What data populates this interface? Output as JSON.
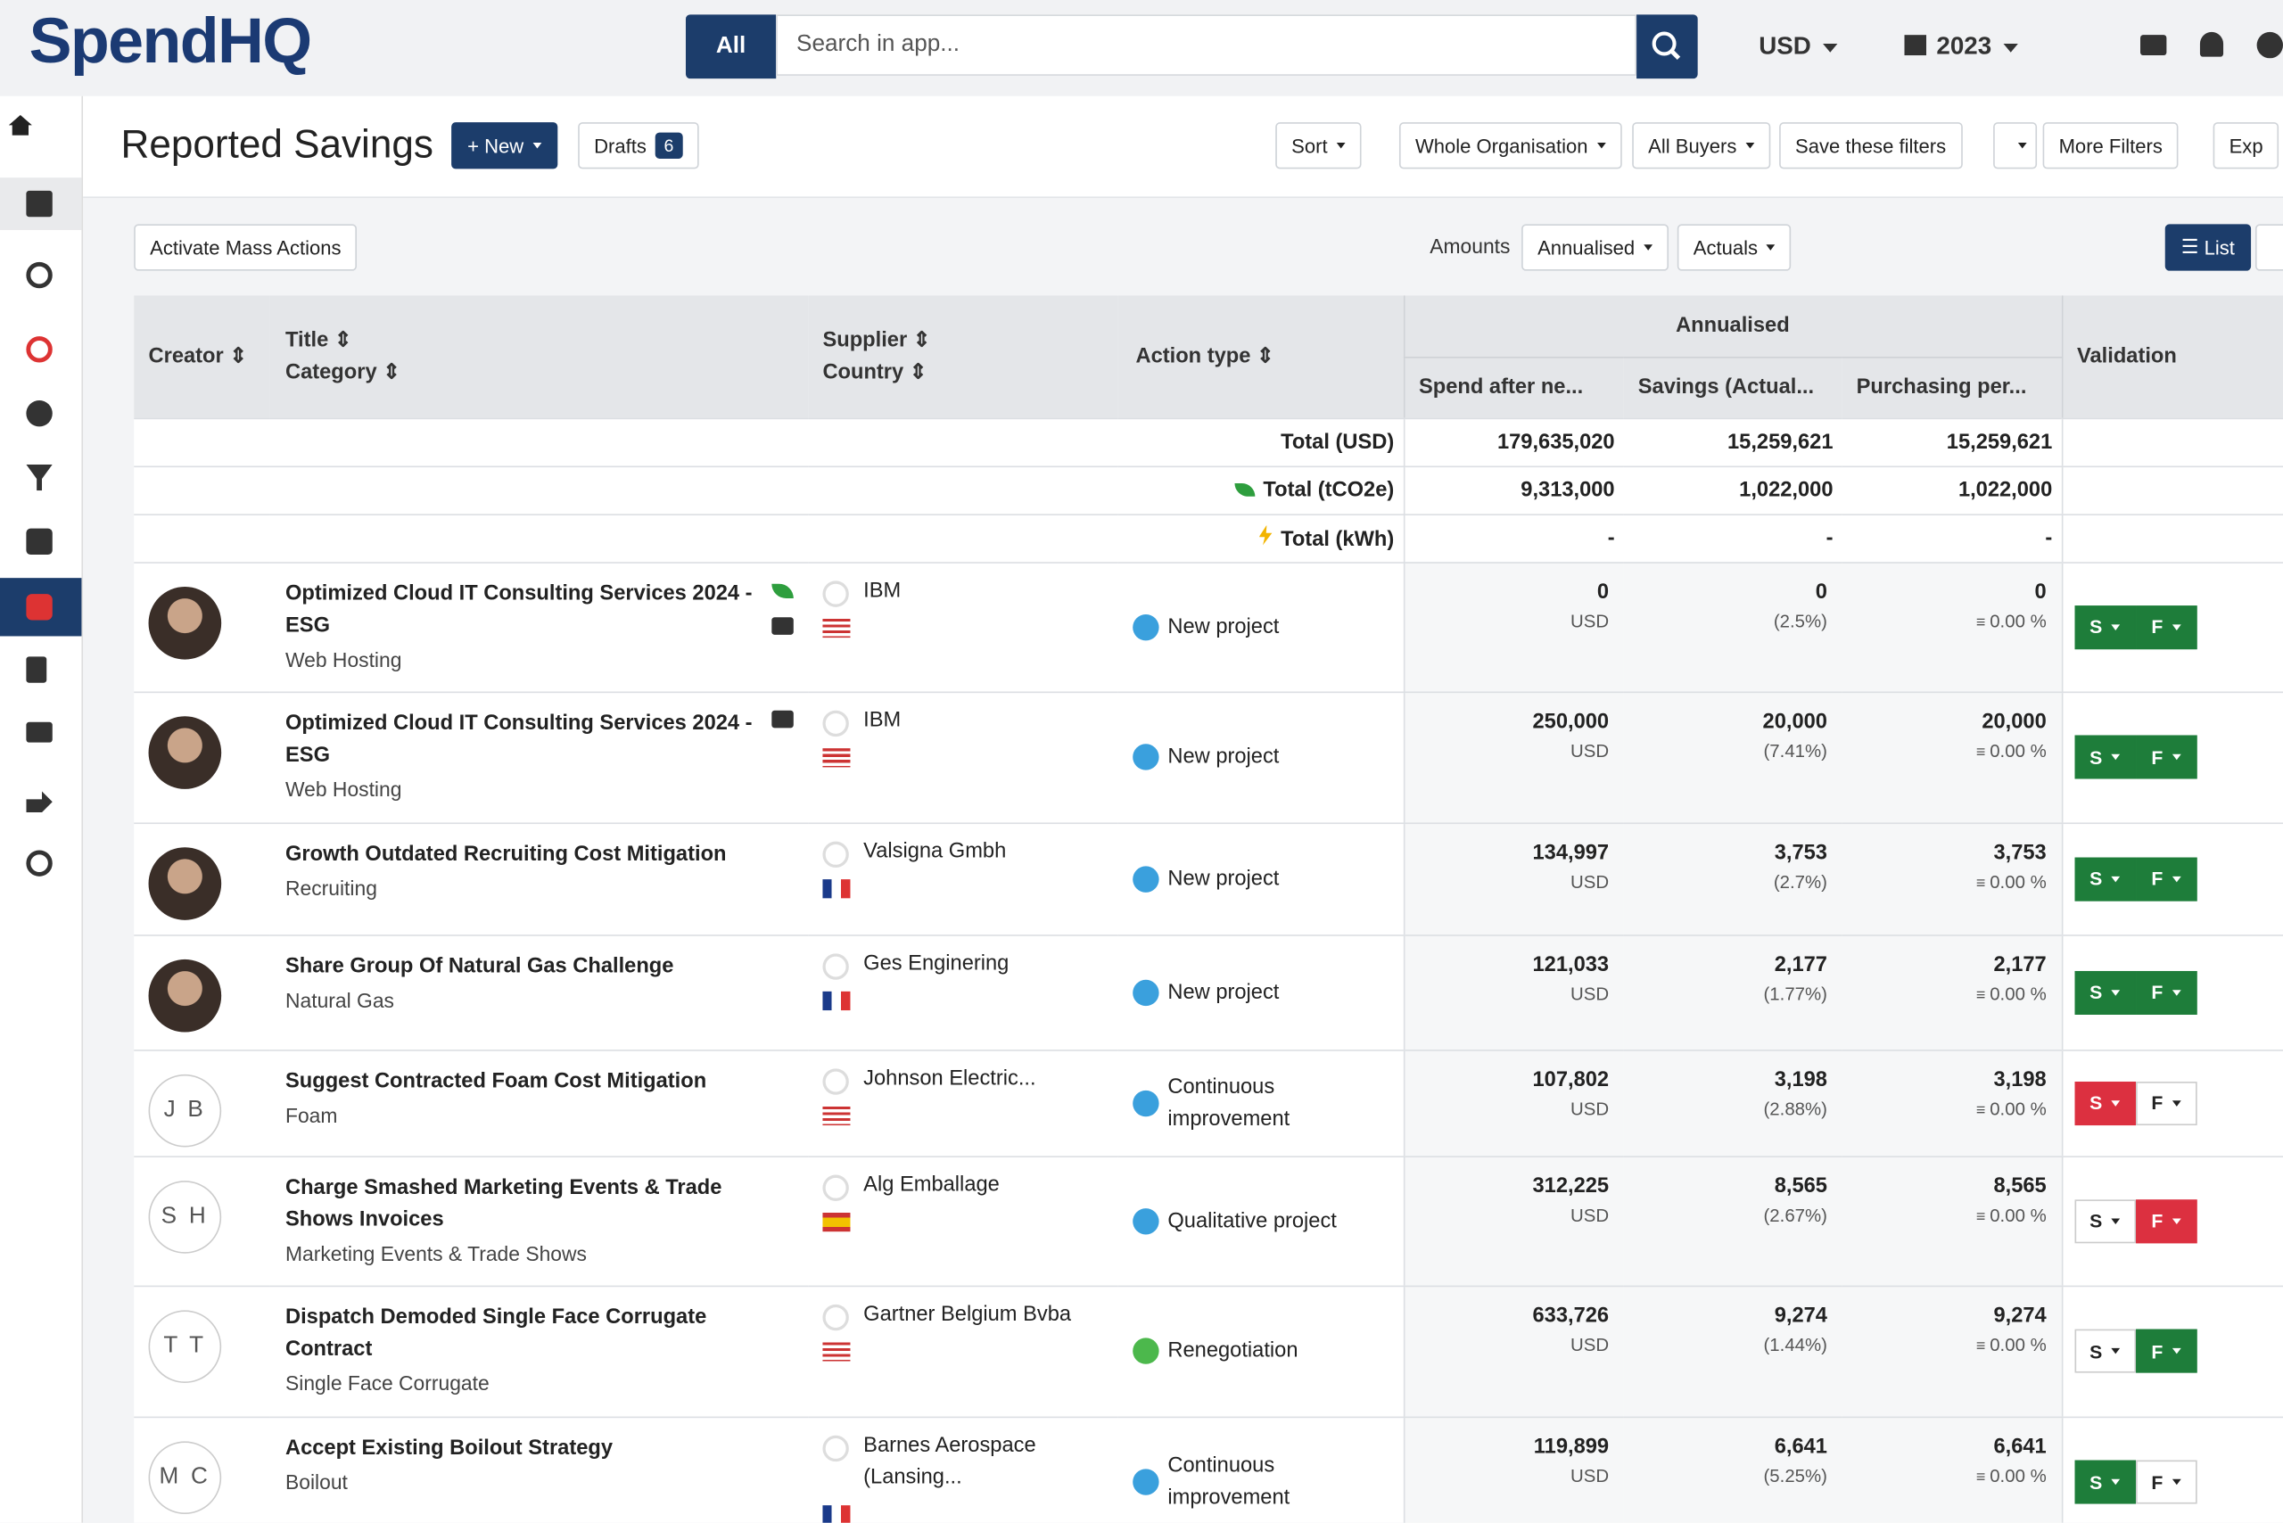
{
  "header": {
    "logo": "SpendHQ",
    "search_scope": "All",
    "search_placeholder": "Search in app...",
    "currency": "USD",
    "year": "2023"
  },
  "toolbar": {
    "title": "Reported Savings",
    "new": "New",
    "drafts": "Drafts",
    "drafts_count": "6",
    "buttons": [
      "Sort",
      "Whole Organisation",
      "All Buyers",
      "Save these filters",
      "More Filters",
      "Exp"
    ]
  },
  "subbar": {
    "mass_actions": "Activate Mass Actions",
    "amounts": "Amounts",
    "period": "Annualised",
    "basis": "Actuals",
    "view": "List"
  },
  "table": {
    "headers": {
      "creator": "Creator",
      "title": "Title",
      "category": "Category",
      "supplier": "Supplier",
      "country": "Country",
      "action_type": "Action type",
      "group": "Annualised",
      "spend": "Spend after ne...",
      "savings": "Savings (Actual...",
      "purchasing": "Purchasing per...",
      "validation": "Validation"
    },
    "totals": [
      {
        "label": "Total (USD)",
        "icon": "none",
        "values": [
          "179,635,020",
          "15,259,621",
          "15,259,621"
        ]
      },
      {
        "label": "Total (tCO2e)",
        "icon": "leaf",
        "values": [
          "9,313,000",
          "1,022,000",
          "1,022,000"
        ]
      },
      {
        "label": "Total (kWh)",
        "icon": "bolt",
        "values": [
          "-",
          "-",
          "-"
        ]
      }
    ],
    "rows": [
      {
        "title": "Optimized Cloud IT Consulting Services 2024 - ESG",
        "category": "Web Hosting",
        "tags": [
          "leaf",
          "case"
        ],
        "supplier": "IBM",
        "flag": "us",
        "action_type": "New project",
        "dot": "#3aa0dd",
        "spend": "0",
        "spend_unit": "USD",
        "savings": "0",
        "savings_pct": "(2.5%)",
        "purchasing": "0",
        "purchasing_pct": "0.00 %",
        "validation": [
          {
            "label": "S",
            "state": "green"
          },
          {
            "label": "F",
            "state": "green"
          }
        ],
        "height": 89
      },
      {
        "title": "Optimized Cloud IT Consulting Services 2024 - ESG",
        "category": "Web Hosting",
        "tags": [
          "case"
        ],
        "supplier": "IBM",
        "flag": "us",
        "action_type": "New project",
        "dot": "#3aa0dd",
        "spend": "250,000",
        "spend_unit": "USD",
        "savings": "20,000",
        "savings_pct": "(7.41%)",
        "purchasing": "20,000",
        "purchasing_pct": "0.00 %",
        "validation": [
          {
            "label": "S",
            "state": "green"
          },
          {
            "label": "F",
            "state": "green"
          }
        ],
        "height": 90
      },
      {
        "title": "Growth Outdated Recruiting Cost Mitigation",
        "category": "Recruiting",
        "tags": [],
        "supplier": "Valsigna Gmbh",
        "flag": "fr",
        "action_type": "New project",
        "dot": "#3aa0dd",
        "spend": "134,997",
        "spend_unit": "USD",
        "savings": "3,753",
        "savings_pct": "(2.7%)",
        "purchasing": "3,753",
        "purchasing_pct": "0.00 %",
        "validation": [
          {
            "label": "S",
            "state": "green"
          },
          {
            "label": "F",
            "state": "green"
          }
        ],
        "height": 77
      },
      {
        "title": "Share Group Of Natural Gas Challenge",
        "category": "Natural Gas",
        "tags": [],
        "supplier": "Ges Enginering",
        "flag": "fr",
        "action_type": "New project",
        "dot": "#3aa0dd",
        "spend": "121,033",
        "spend_unit": "USD",
        "savings": "2,177",
        "savings_pct": "(1.77%)",
        "purchasing": "2,177",
        "purchasing_pct": "0.00 %",
        "validation": [
          {
            "label": "S",
            "state": "green"
          },
          {
            "label": "F",
            "state": "green"
          }
        ],
        "height": 79
      },
      {
        "initials": "J B",
        "title": "Suggest Contracted Foam Cost Mitigation",
        "category": "Foam",
        "tags": [],
        "supplier": "Johnson Electric...",
        "flag": "us",
        "action_type": "Continuous improvement",
        "dot": "#3aa0dd",
        "spend": "107,802",
        "spend_unit": "USD",
        "savings": "3,198",
        "savings_pct": "(2.88%)",
        "purchasing": "3,198",
        "purchasing_pct": "0.00 %",
        "validation": [
          {
            "label": "S",
            "state": "red"
          },
          {
            "label": "F",
            "state": "white"
          }
        ],
        "height": 73
      },
      {
        "initials": "S H",
        "title": "Charge Smashed Marketing Events & Trade Shows Invoices",
        "category": "Marketing Events & Trade Shows",
        "tags": [],
        "supplier": "Alg Emballage",
        "flag": "es",
        "action_type": "Qualitative project",
        "dot": "#3aa0dd",
        "spend": "312,225",
        "spend_unit": "USD",
        "savings": "8,565",
        "savings_pct": "(2.67%)",
        "purchasing": "8,565",
        "purchasing_pct": "0.00 %",
        "validation": [
          {
            "label": "S",
            "state": "white"
          },
          {
            "label": "F",
            "state": "red"
          }
        ],
        "height": 89
      },
      {
        "initials": "T T",
        "title": "Dispatch Demoded Single Face Corrugate Contract",
        "category": "Single Face Corrugate",
        "tags": [],
        "supplier": "Gartner Belgium Bvba",
        "flag": "us",
        "action_type": "Renegotiation",
        "dot": "#4cb84c",
        "spend": "633,726",
        "spend_unit": "USD",
        "savings": "9,274",
        "savings_pct": "(1.44%)",
        "purchasing": "9,274",
        "purchasing_pct": "0.00 %",
        "validation": [
          {
            "label": "S",
            "state": "white"
          },
          {
            "label": "F",
            "state": "green"
          }
        ],
        "height": 90
      },
      {
        "initials": "M C",
        "title": "Accept Existing Boilout Strategy",
        "category": "Boilout",
        "tags": [],
        "supplier": "Barnes Aerospace (Lansing...",
        "flag": "fr",
        "action_type": "Continuous improvement",
        "dot": "#3aa0dd",
        "spend": "119,899",
        "spend_unit": "USD",
        "savings": "6,641",
        "savings_pct": "(5.25%)",
        "purchasing": "6,641",
        "purchasing_pct": "0.00 %",
        "validation": [
          {
            "label": "S",
            "state": "green"
          },
          {
            "label": "F",
            "state": "white"
          }
        ],
        "height": 90
      }
    ]
  }
}
